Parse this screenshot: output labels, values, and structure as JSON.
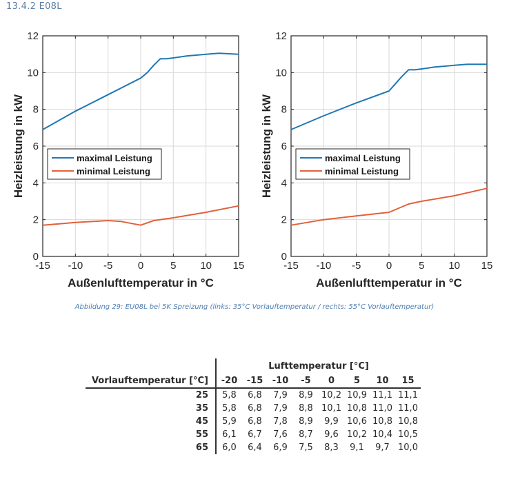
{
  "heading": "13.4.2  E08L",
  "caption": "Abbildung 29: EU08L bei 5K Spreizung (links: 35°C Vorlauftemperatur / rechts: 55°C Vorlauftemperatur)",
  "colors": {
    "max": "#1f77b4",
    "min": "#e2603a",
    "grid": "#d9d9d9",
    "axis": "#262626"
  },
  "chart_data": [
    {
      "type": "line",
      "xlabel": "Außenlufttemperatur in °C",
      "ylabel": "Heizleistung in kW",
      "xlim": [
        -15,
        15
      ],
      "ylim": [
        0,
        12
      ],
      "xticks": [
        -15,
        -10,
        -5,
        0,
        5,
        10,
        15
      ],
      "yticks": [
        0,
        2,
        4,
        6,
        8,
        10,
        12
      ],
      "grid": true,
      "legend_position": "middle-left",
      "series": [
        {
          "name": "maximal Leistung",
          "color": "#1f77b4",
          "x": [
            -15,
            -10,
            -5,
            0,
            1,
            2,
            3,
            4,
            5,
            7,
            10,
            12,
            15
          ],
          "y": [
            6.9,
            7.9,
            8.8,
            9.7,
            10.0,
            10.4,
            10.75,
            10.75,
            10.8,
            10.9,
            11.0,
            11.05,
            11.0
          ]
        },
        {
          "name": "minimal Leistung",
          "color": "#e2603a",
          "x": [
            -15,
            -10,
            -5,
            -3,
            0,
            2,
            5,
            10,
            15
          ],
          "y": [
            1.7,
            1.85,
            1.95,
            1.9,
            1.7,
            1.95,
            2.1,
            2.4,
            2.75
          ]
        }
      ]
    },
    {
      "type": "line",
      "xlabel": "Außenlufttemperatur in °C",
      "ylabel": "Heizleistung in kW",
      "xlim": [
        -15,
        15
      ],
      "ylim": [
        0,
        12
      ],
      "xticks": [
        -15,
        -10,
        -5,
        0,
        5,
        10,
        15
      ],
      "yticks": [
        0,
        2,
        4,
        6,
        8,
        10,
        12
      ],
      "grid": true,
      "legend_position": "middle-left",
      "series": [
        {
          "name": "maximal Leistung",
          "color": "#1f77b4",
          "x": [
            -15,
            -10,
            -5,
            0,
            1,
            2,
            3,
            4,
            5,
            7,
            10,
            12,
            15
          ],
          "y": [
            6.9,
            7.65,
            8.35,
            9.0,
            9.4,
            9.8,
            10.15,
            10.15,
            10.2,
            10.3,
            10.4,
            10.45,
            10.45
          ]
        },
        {
          "name": "minimal Leistung",
          "color": "#e2603a",
          "x": [
            -15,
            -10,
            -5,
            0,
            1,
            3,
            5,
            10,
            15
          ],
          "y": [
            1.7,
            2.0,
            2.2,
            2.4,
            2.55,
            2.85,
            3.0,
            3.3,
            3.7
          ]
        }
      ]
    }
  ],
  "table": {
    "group_header": "Lufttemperatur [°C]",
    "row_header": "Vorlauftemperatur [°C]",
    "columns": [
      "-20",
      "-15",
      "-10",
      "-5",
      "0",
      "5",
      "10",
      "15"
    ],
    "rows": [
      {
        "label": "25",
        "values": [
          "5,8",
          "6,8",
          "7,9",
          "8,9",
          "10,2",
          "10,9",
          "11,1",
          "11,1"
        ]
      },
      {
        "label": "35",
        "values": [
          "5,8",
          "6,8",
          "7,9",
          "8,8",
          "10,1",
          "10,8",
          "11,0",
          "11,0"
        ]
      },
      {
        "label": "45",
        "values": [
          "5,9",
          "6,8",
          "7,8",
          "8,9",
          "9,9",
          "10,6",
          "10,8",
          "10,8"
        ]
      },
      {
        "label": "55",
        "values": [
          "6,1",
          "6,7",
          "7,6",
          "8,7",
          "9,6",
          "10,2",
          "10,4",
          "10,5"
        ]
      },
      {
        "label": "65",
        "values": [
          "6,0",
          "6,4",
          "6,9",
          "7,5",
          "8,3",
          "9,1",
          "9,7",
          "10,0"
        ]
      }
    ]
  }
}
